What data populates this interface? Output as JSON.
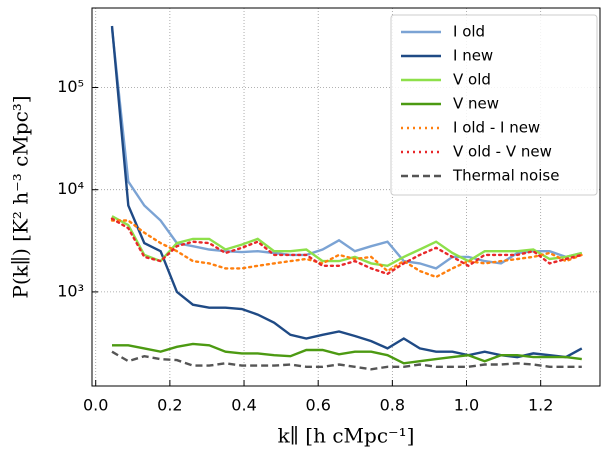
{
  "chart_data": {
    "type": "line",
    "xlabel": "k∥ [h cMpc⁻¹]",
    "ylabel": "P(k∥) [K² h⁻³ cMpc³]",
    "x": [
      0.044,
      0.088,
      0.131,
      0.175,
      0.219,
      0.262,
      0.306,
      0.35,
      0.394,
      0.437,
      0.481,
      0.525,
      0.568,
      0.612,
      0.656,
      0.699,
      0.743,
      0.787,
      0.831,
      0.874,
      0.918,
      0.962,
      1.005,
      1.049,
      1.093,
      1.137,
      1.18,
      1.224,
      1.268,
      1.311
    ],
    "xlim": [
      -0.01,
      1.36
    ],
    "xticks": [
      {
        "value": 0,
        "label": "0.0"
      },
      0.2,
      0.4,
      0.6,
      0.8,
      {
        "value": 1,
        "label": "1.0"
      },
      1.2
    ],
    "ylim": [
      120,
      600000
    ],
    "yticks": [
      {
        "value": 1000,
        "label": "10³"
      },
      {
        "value": 10000,
        "label": "10⁴"
      },
      {
        "value": 100000,
        "label": "10⁵"
      }
    ],
    "log_y": true,
    "grid": true,
    "legend": "upper right",
    "series": [
      {
        "name": "I old",
        "color": "#7ba3d4",
        "style": "solid",
        "values": [
          380000,
          12000,
          7000,
          5000,
          3000,
          2800,
          2600,
          2500,
          2450,
          2500,
          2400,
          2300,
          2300,
          2600,
          3200,
          2500,
          2800,
          3100,
          2000,
          1900,
          1700,
          2200,
          2200,
          2000,
          1900,
          2400,
          2500,
          2500,
          2200,
          2400
        ]
      },
      {
        "name": "I new",
        "color": "#1f4a85",
        "style": "solid",
        "values": [
          400000,
          7000,
          3000,
          2500,
          1000,
          750,
          700,
          700,
          680,
          600,
          500,
          380,
          350,
          380,
          410,
          370,
          330,
          280,
          350,
          280,
          260,
          260,
          240,
          260,
          240,
          230,
          250,
          240,
          230,
          280
        ]
      },
      {
        "name": "V old",
        "color": "#8ee04a",
        "style": "solid",
        "values": [
          5500,
          4500,
          2300,
          2000,
          3000,
          3300,
          3300,
          2600,
          2900,
          3300,
          2500,
          2500,
          2600,
          2000,
          2000,
          2200,
          1900,
          1800,
          2200,
          2600,
          3100,
          2400,
          2000,
          2500,
          2500,
          2500,
          2600,
          2100,
          2200,
          2400
        ]
      },
      {
        "name": "V new",
        "color": "#4c9a12",
        "style": "solid",
        "values": [
          300,
          300,
          280,
          260,
          290,
          310,
          300,
          260,
          250,
          250,
          240,
          235,
          270,
          270,
          245,
          260,
          260,
          240,
          200,
          210,
          220,
          230,
          240,
          210,
          240,
          240,
          230,
          230,
          230,
          220
        ]
      },
      {
        "name": "I old - I new",
        "color": "#ff7f0e",
        "style": "dotted",
        "values": [
          5000,
          5000,
          3800,
          3000,
          2500,
          2000,
          1900,
          1700,
          1700,
          1800,
          1900,
          2000,
          2100,
          1900,
          2300,
          2100,
          2200,
          1600,
          2000,
          1600,
          1400,
          1700,
          2000,
          1900,
          2000,
          2100,
          2200,
          2400,
          2000,
          2300
        ]
      },
      {
        "name": "V old - V new",
        "color": "#e8282a",
        "style": "dotted",
        "values": [
          5200,
          4200,
          2200,
          2000,
          2800,
          3100,
          3000,
          2400,
          2700,
          3100,
          2300,
          2300,
          2300,
          1800,
          1800,
          2000,
          1700,
          1500,
          1900,
          2300,
          2700,
          2200,
          1800,
          2300,
          2300,
          2300,
          2500,
          1900,
          2100,
          2300
        ]
      },
      {
        "name": "Thermal noise",
        "color": "#555555",
        "style": "dashed",
        "values": [
          260,
          210,
          235,
          220,
          215,
          190,
          190,
          200,
          190,
          190,
          190,
          195,
          185,
          185,
          195,
          185,
          175,
          185,
          185,
          195,
          185,
          185,
          185,
          195,
          195,
          200,
          195,
          185,
          185,
          185
        ]
      }
    ]
  }
}
